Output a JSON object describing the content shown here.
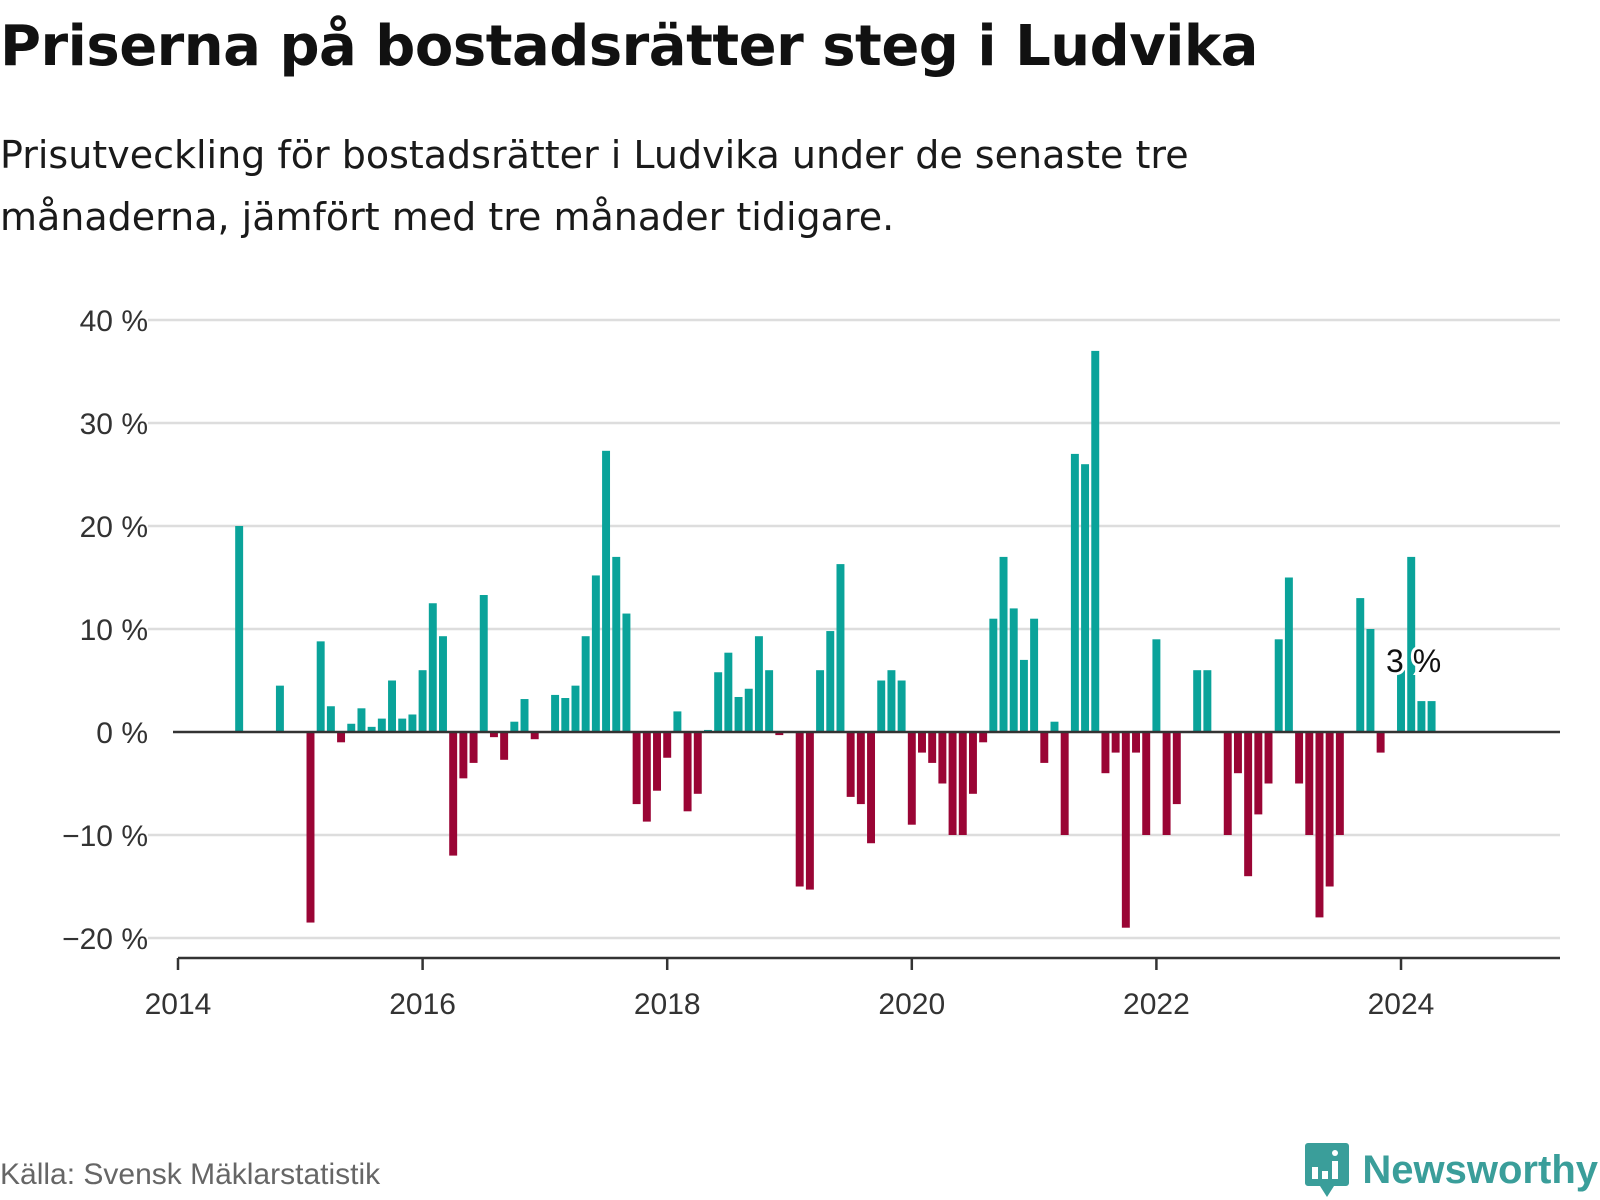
{
  "title": "Priserna på bostadsrätter steg i Ludvika",
  "subtitle": "Prisutveckling för bostadsrätter i Ludvika under de senaste tre månaderna, jämfört med tre månader tidigare.",
  "source": "Källa: Svensk Mäklarstatistik",
  "brand": "Newsworthy",
  "colors": {
    "positive": "#0aa39a",
    "negative": "#9a0535",
    "grid": "#dddddd",
    "axis": "#333333",
    "brand": "#3a9e9a"
  },
  "chart_data": {
    "type": "bar",
    "title": "Priserna på bostadsrätter steg i Ludvika",
    "xlabel": "",
    "ylabel": "",
    "ylim": [
      -20,
      40
    ],
    "xlim": [
      2014.0,
      2025.3
    ],
    "y_ticks": [
      40,
      30,
      20,
      10,
      0,
      -10,
      -20
    ],
    "y_tick_labels": [
      "40 %",
      "30 %",
      "20 %",
      "10 %",
      "0 %",
      "−10 %",
      "−20 %"
    ],
    "x_ticks": [
      2014,
      2016,
      2018,
      2020,
      2022,
      2024
    ],
    "x_tick_labels": [
      "2014",
      "2016",
      "2018",
      "2020",
      "2022",
      "2024"
    ],
    "start": 2014.0,
    "step_months": 1,
    "values": [
      0,
      0,
      0,
      0,
      0,
      0,
      20,
      0,
      0,
      0,
      4.5,
      0,
      0,
      -18.5,
      8.8,
      2.5,
      -1,
      0.8,
      2.3,
      0.5,
      1.3,
      5,
      1.3,
      1.7,
      6,
      12.5,
      9.3,
      -12,
      -4.5,
      -3,
      13.3,
      -0.5,
      -2.7,
      1,
      3.2,
      -0.7,
      0,
      3.6,
      3.3,
      4.5,
      9.3,
      15.2,
      27.3,
      17,
      11.5,
      -7,
      -8.7,
      -5.7,
      -2.5,
      2,
      -7.7,
      -6,
      0.2,
      5.8,
      7.7,
      3.4,
      4.2,
      9.3,
      6,
      -0.3,
      0,
      -15,
      -15.3,
      6,
      9.8,
      16.3,
      -6.3,
      -7,
      -10.8,
      5,
      6,
      5,
      -9,
      -2,
      -3,
      -5,
      -10,
      -10,
      -6,
      -1,
      11,
      17,
      12,
      7,
      11,
      -3,
      1,
      -10,
      27,
      26,
      37,
      -4,
      -2,
      -19,
      -2,
      -10,
      9,
      -10,
      -7,
      0,
      6,
      6,
      0,
      -10,
      -4,
      -14,
      -8,
      -5,
      9,
      15,
      -5,
      -10,
      -18,
      -15,
      -10,
      0,
      13,
      10,
      -2,
      0,
      6,
      17,
      3,
      3,
      0
    ],
    "annotation": {
      "label": "3 %",
      "value": 3
    }
  }
}
